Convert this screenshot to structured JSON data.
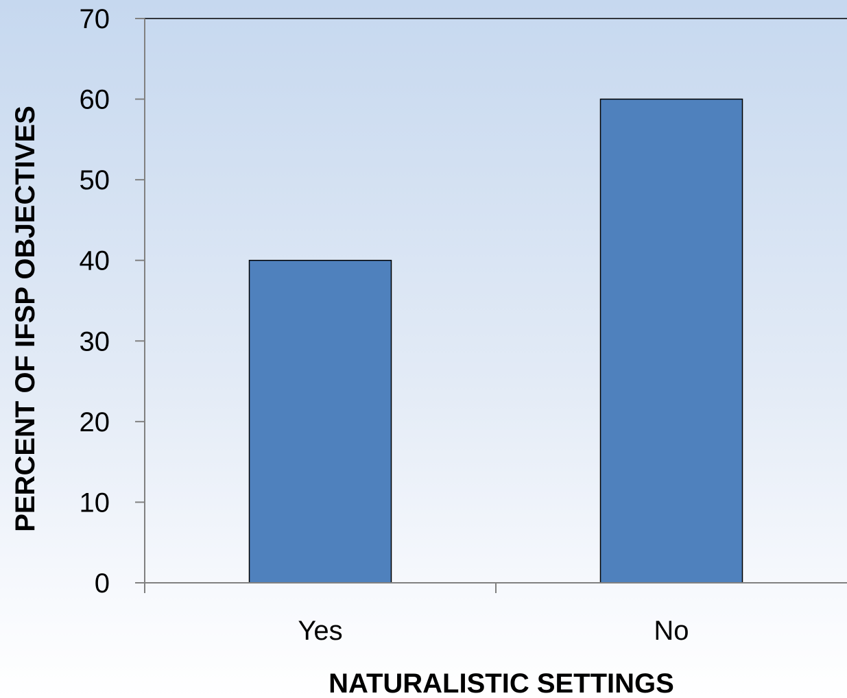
{
  "chart_data": {
    "type": "bar",
    "title": "",
    "categories": [
      "Yes",
      "No"
    ],
    "values": [
      40,
      60
    ],
    "xlabel": "NATURALISTIC SETTINGS",
    "ylabel": "PERCENT OF IFSP OBJECTIVES",
    "ylim": [
      0,
      70
    ],
    "yticks": [
      "0",
      "10",
      "20",
      "30",
      "40",
      "50",
      "60",
      "70"
    ],
    "grid": false,
    "legend": "none",
    "colors": {
      "bar": "#4f81bd",
      "bar_outline": "#000000",
      "axis": "#808080",
      "background_top": "#c6d8ef",
      "background_bottom": "#ffffff"
    }
  }
}
